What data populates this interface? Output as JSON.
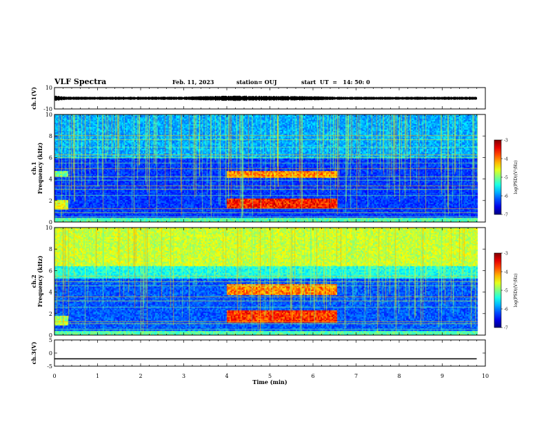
{
  "header": {
    "title": "VLF Spectra",
    "date": "Feb. 11, 2023",
    "station": "station= OUJ",
    "start": "start  UT  =   14: 50: 0"
  },
  "chart_data": [
    {
      "type": "line",
      "panel": "ch1-waveform",
      "ylabel": "ch.1(V)",
      "ylim": [
        -10,
        10
      ],
      "yticks": [
        "10",
        "-10"
      ],
      "xlim": [
        0,
        10
      ],
      "amplitude_envelope": [
        {
          "t_min": 0.0,
          "amp": 2.6
        },
        {
          "t_min": 0.25,
          "amp": 1.6
        },
        {
          "t_min": 1.0,
          "amp": 1.4
        },
        {
          "t_min": 2.0,
          "amp": 1.5
        },
        {
          "t_min": 3.0,
          "amp": 1.6
        },
        {
          "t_min": 3.9,
          "amp": 2.4
        },
        {
          "t_min": 4.3,
          "amp": 2.6
        },
        {
          "t_min": 5.0,
          "amp": 2.2
        },
        {
          "t_min": 6.0,
          "amp": 2.0
        },
        {
          "t_min": 6.6,
          "amp": 1.5
        },
        {
          "t_min": 8.0,
          "amp": 1.4
        },
        {
          "t_min": 9.8,
          "amp": 1.5
        }
      ]
    },
    {
      "type": "heatmap",
      "panel": "ch1-spectrogram",
      "ylabel": "ch.1\nFrequency (kHz)",
      "ylim": [
        0,
        10
      ],
      "yticks": [
        "0",
        "2",
        "4",
        "6",
        "8",
        "10"
      ],
      "xlim": [
        0,
        10
      ],
      "colorbar": {
        "label": "log(PSD)(V²/Hz)",
        "range": [
          -7,
          -3
        ],
        "ticks": [
          "-3",
          "-4",
          "-5",
          "-6",
          "-7"
        ]
      },
      "features": [
        {
          "kind": "band",
          "t_start": 0.0,
          "t_end": 0.3,
          "f_low": 1.2,
          "f_high": 2.1,
          "level": -4.6
        },
        {
          "kind": "band",
          "t_start": 0.0,
          "t_end": 0.3,
          "f_low": 4.3,
          "f_high": 4.8,
          "level": -5.0
        },
        {
          "kind": "band",
          "t_start": 4.0,
          "t_end": 6.55,
          "f_low": 1.3,
          "f_high": 2.2,
          "level": -3.6
        },
        {
          "kind": "band",
          "t_start": 4.0,
          "t_end": 6.55,
          "f_low": 4.2,
          "f_high": 4.8,
          "level": -4.0
        },
        {
          "kind": "hiss",
          "t_start": 0.0,
          "t_end": 9.8,
          "f_low": 6.0,
          "f_high": 10.0,
          "level": -5.9
        }
      ]
    },
    {
      "type": "heatmap",
      "panel": "ch2-spectrogram",
      "ylabel": "ch.2\nFrequency (kHz)",
      "ylim": [
        0,
        10
      ],
      "yticks": [
        "0",
        "2",
        "4",
        "6",
        "8",
        "10"
      ],
      "xlim": [
        0,
        10
      ],
      "colorbar": {
        "label": "log(PSD)(V²/Hz)",
        "range": [
          -7,
          -3
        ],
        "ticks": [
          "-3",
          "-4",
          "-5",
          "-6",
          "-7"
        ]
      },
      "features": [
        {
          "kind": "hiss",
          "t_start": 0.0,
          "t_end": 9.8,
          "f_low": 6.5,
          "f_high": 10.0,
          "level": -4.9
        },
        {
          "kind": "band",
          "t_start": 0.0,
          "t_end": 0.3,
          "f_low": 1.0,
          "f_high": 1.8,
          "level": -4.8
        },
        {
          "kind": "band",
          "t_start": 4.0,
          "t_end": 6.55,
          "f_low": 1.2,
          "f_high": 2.4,
          "level": -3.7
        },
        {
          "kind": "band",
          "t_start": 4.0,
          "t_end": 6.55,
          "f_low": 3.8,
          "f_high": 4.8,
          "level": -4.0
        }
      ]
    },
    {
      "type": "line",
      "panel": "ch3-waveform",
      "ylabel": "ch.3(V)",
      "ylim": [
        -5,
        5
      ],
      "yticks": [
        "5",
        "0",
        "-5"
      ],
      "xlim": [
        0,
        10
      ],
      "x": [
        0,
        9.8
      ],
      "y": [
        -2.2,
        -2.2
      ]
    }
  ],
  "xaxis": {
    "label": "Time  (min)",
    "ticks": [
      "0",
      "1",
      "2",
      "3",
      "4",
      "5",
      "6",
      "7",
      "8",
      "9",
      "10"
    ]
  },
  "colors": {
    "background": "#ffffff",
    "axis": "#000000",
    "data_background": "#0a1f8a"
  }
}
